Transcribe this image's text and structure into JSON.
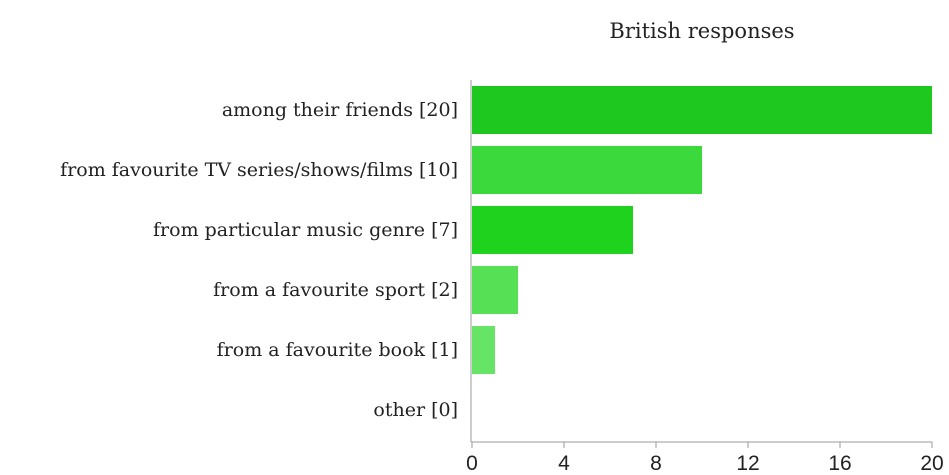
{
  "chart_data": {
    "type": "bar",
    "orientation": "horizontal",
    "title": "British responses",
    "categories": [
      "among their friends [20]",
      "from favourite TV series/shows/films [10]",
      "from particular music genre [7]",
      "from a favourite sport [2]",
      "from a favourite book [1]",
      "other [0]"
    ],
    "values": [
      20,
      10,
      7,
      2,
      1,
      0
    ],
    "colors": [
      "#1ec81e",
      "#3cd93c",
      "#1ed21e",
      "#55e055",
      "#66e466",
      "#7ee87e"
    ],
    "xlim": [
      0,
      20
    ],
    "xticks": [
      "0",
      "4",
      "8",
      "12",
      "16",
      "20"
    ],
    "xlabel": "",
    "ylabel": "",
    "grid": false
  }
}
